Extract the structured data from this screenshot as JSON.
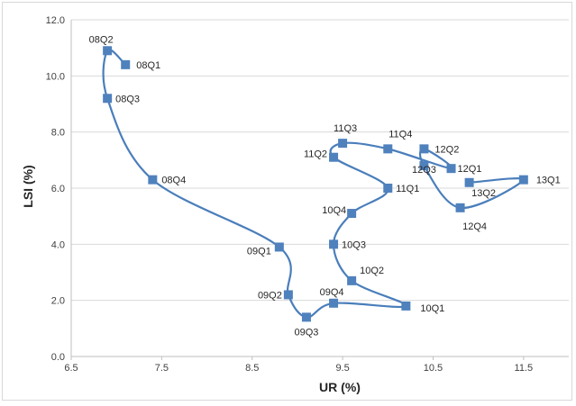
{
  "chart_data": {
    "type": "scatter",
    "xlabel": "UR (%)",
    "ylabel": "LSI (%)",
    "xlim": [
      6.5,
      12.0
    ],
    "ylim": [
      0.0,
      12.0
    ],
    "x_ticks": [
      "6.5",
      "7.5",
      "8.5",
      "9.5",
      "10.5",
      "11.5"
    ],
    "y_ticks": [
      "0.0",
      "2.0",
      "4.0",
      "6.0",
      "8.0",
      "10.0",
      "12.0"
    ],
    "grid": "horizontal",
    "line_color": "#4a7ebb",
    "marker_color": "#4f81bd",
    "points": [
      {
        "label": "08Q1",
        "x": 7.1,
        "y": 10.4
      },
      {
        "label": "08Q2",
        "x": 6.9,
        "y": 10.9
      },
      {
        "label": "08Q3",
        "x": 6.9,
        "y": 9.2
      },
      {
        "label": "08Q4",
        "x": 7.4,
        "y": 6.3
      },
      {
        "label": "09Q1",
        "x": 8.8,
        "y": 3.9
      },
      {
        "label": "09Q2",
        "x": 8.9,
        "y": 2.2
      },
      {
        "label": "09Q3",
        "x": 9.1,
        "y": 1.4
      },
      {
        "label": "09Q4",
        "x": 9.4,
        "y": 1.9
      },
      {
        "label": "10Q1",
        "x": 10.2,
        "y": 1.8
      },
      {
        "label": "10Q2",
        "x": 9.6,
        "y": 2.7
      },
      {
        "label": "10Q3",
        "x": 9.4,
        "y": 4.0
      },
      {
        "label": "10Q4",
        "x": 9.6,
        "y": 5.1
      },
      {
        "label": "11Q1",
        "x": 10.0,
        "y": 6.0
      },
      {
        "label": "11Q2",
        "x": 9.4,
        "y": 7.1
      },
      {
        "label": "11Q3",
        "x": 9.5,
        "y": 7.6
      },
      {
        "label": "11Q4",
        "x": 10.0,
        "y": 7.4
      },
      {
        "label": "12Q1",
        "x": 10.7,
        "y": 6.7
      },
      {
        "label": "12Q2",
        "x": 10.4,
        "y": 7.4
      },
      {
        "label": "12Q3",
        "x": 10.4,
        "y": 6.8
      },
      {
        "label": "12Q4",
        "x": 10.8,
        "y": 5.3
      },
      {
        "label": "13Q1",
        "x": 11.5,
        "y": 6.3
      },
      {
        "label": "13Q2",
        "x": 10.9,
        "y": 6.2
      }
    ],
    "path_order": [
      "08Q1",
      "08Q2",
      "08Q3",
      "08Q4",
      "09Q1",
      "09Q2",
      "09Q3",
      "09Q4",
      "10Q1",
      "10Q2",
      "10Q3",
      "10Q4",
      "11Q1",
      "11Q2",
      "11Q3",
      "11Q4",
      "12Q1",
      "12Q2",
      "12Q3",
      "12Q4",
      "13Q1",
      "13Q2"
    ]
  }
}
